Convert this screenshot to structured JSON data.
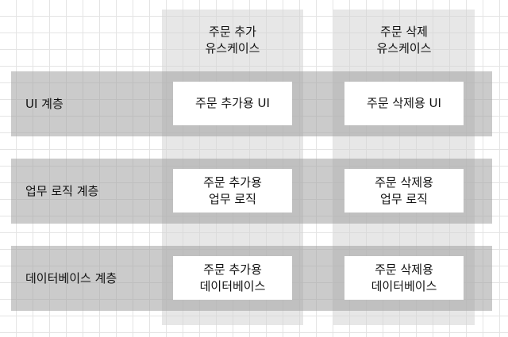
{
  "use_cases": [
    "주문 추가\n유스케이스",
    "주문 삭제\n유스케이스"
  ],
  "layers": [
    {
      "label": "UI 계층",
      "cells": [
        "주문 추가용 UI",
        "주문 삭제용 UI"
      ]
    },
    {
      "label": "업무 로직 계층",
      "cells": [
        "주문 추가용\n업무 로직",
        "주문 삭제용\n업무 로직"
      ]
    },
    {
      "label": "데이터베이스 계층",
      "cells": [
        "주문 추가용\n데이터베이스",
        "주문 삭제용\n데이터베이스"
      ]
    }
  ]
}
